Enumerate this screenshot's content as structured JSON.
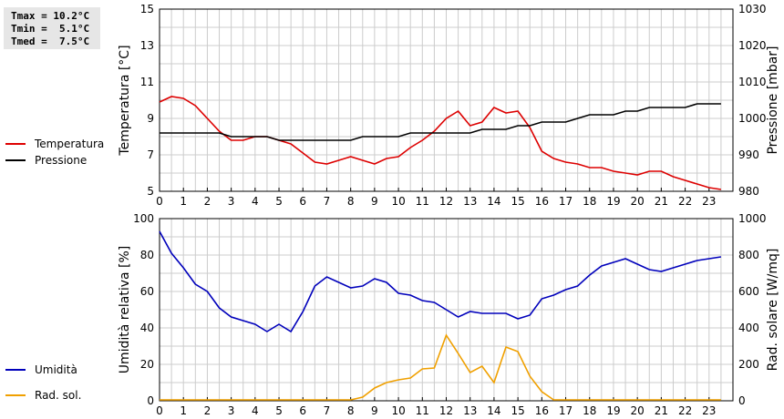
{
  "stats": {
    "tmax": "Tmax = 10.2°C",
    "tmin": "Tmin =  5.1°C",
    "tmed": "Tmed =  7.5°C"
  },
  "colors": {
    "temperature": "#dd0000",
    "pressure": "#000000",
    "humidity": "#0000bb",
    "solar": "#f0a000",
    "grid": "#cccccc"
  },
  "chart_data": [
    {
      "type": "line",
      "xlim": [
        0,
        24
      ],
      "x_ticks": [
        "0",
        "1",
        "2",
        "3",
        "4",
        "5",
        "6",
        "7",
        "8",
        "9",
        "10",
        "11",
        "12",
        "13",
        "14",
        "15",
        "16",
        "17",
        "18",
        "19",
        "20",
        "21",
        "22",
        "23"
      ],
      "y_left": {
        "label": "Temperatura [°C]",
        "lim": [
          5,
          15
        ],
        "ticks": [
          "5",
          "7",
          "9",
          "11",
          "13",
          "15"
        ]
      },
      "y_right": {
        "label": "Pressione [mbar]",
        "lim": [
          980,
          1030
        ],
        "ticks": [
          "980",
          "990",
          "1000",
          "1010",
          "1020",
          "1030"
        ]
      },
      "grid": true,
      "legend_position": "left",
      "series": [
        {
          "name": "Temperatura",
          "axis": "left",
          "color": "#dd0000",
          "x": [
            0,
            0.5,
            1,
            1.5,
            2,
            2.5,
            3,
            3.5,
            4,
            4.5,
            5,
            5.5,
            6,
            6.5,
            7,
            7.5,
            8,
            8.5,
            9,
            9.5,
            10,
            10.5,
            11,
            11.5,
            12,
            12.5,
            13,
            13.5,
            14,
            14.5,
            15,
            15.5,
            16,
            16.5,
            17,
            17.5,
            18,
            18.5,
            19,
            19.5,
            20,
            20.5,
            21,
            21.5,
            22,
            22.5,
            23,
            23.5
          ],
          "y": [
            9.9,
            10.2,
            10.1,
            9.7,
            9.0,
            8.3,
            7.8,
            7.8,
            8.0,
            8.0,
            7.8,
            7.6,
            7.1,
            6.6,
            6.5,
            6.7,
            6.9,
            6.7,
            6.5,
            6.8,
            6.9,
            7.4,
            7.8,
            8.3,
            9.0,
            9.4,
            8.6,
            8.8,
            9.6,
            9.3,
            9.4,
            8.5,
            7.2,
            6.8,
            6.6,
            6.5,
            6.3,
            6.3,
            6.1,
            6.0,
            5.9,
            6.1,
            6.1,
            5.8,
            5.6,
            5.4,
            5.2,
            5.1
          ]
        },
        {
          "name": "Pressione",
          "axis": "right",
          "color": "#000000",
          "x": [
            0,
            0.5,
            1,
            1.5,
            2,
            2.5,
            3,
            3.5,
            4,
            4.5,
            5,
            5.5,
            6,
            6.5,
            7,
            7.5,
            8,
            8.5,
            9,
            9.5,
            10,
            10.5,
            11,
            11.5,
            12,
            12.5,
            13,
            13.5,
            14,
            14.5,
            15,
            15.5,
            16,
            16.5,
            17,
            17.5,
            18,
            18.5,
            19,
            19.5,
            20,
            20.5,
            21,
            21.5,
            22,
            22.5,
            23,
            23.5
          ],
          "y": [
            996,
            996,
            996,
            996,
            996,
            996,
            995,
            995,
            995,
            995,
            994,
            994,
            994,
            994,
            994,
            994,
            994,
            995,
            995,
            995,
            995,
            996,
            996,
            996,
            996,
            996,
            996,
            997,
            997,
            997,
            998,
            998,
            999,
            999,
            999,
            1000,
            1001,
            1001,
            1001,
            1002,
            1002,
            1003,
            1003,
            1003,
            1003,
            1004,
            1004,
            1004
          ]
        }
      ]
    },
    {
      "type": "line",
      "xlim": [
        0,
        24
      ],
      "x_ticks": [
        "0",
        "1",
        "2",
        "3",
        "4",
        "5",
        "6",
        "7",
        "8",
        "9",
        "10",
        "11",
        "12",
        "13",
        "14",
        "15",
        "16",
        "17",
        "18",
        "19",
        "20",
        "21",
        "22",
        "23"
      ],
      "y_left": {
        "label": "Umidità relativa [%]",
        "lim": [
          0,
          100
        ],
        "ticks": [
          "0",
          "20",
          "40",
          "60",
          "80",
          "100"
        ]
      },
      "y_right": {
        "label": "Rad. solare [W/mq]",
        "lim": [
          0,
          1000
        ],
        "ticks": [
          "0",
          "200",
          "400",
          "600",
          "800",
          "1000"
        ]
      },
      "grid": true,
      "legend_position": "left",
      "series": [
        {
          "name": "Umidità",
          "axis": "left",
          "color": "#0000bb",
          "x": [
            0,
            0.5,
            1,
            1.5,
            2,
            2.5,
            3,
            3.5,
            4,
            4.5,
            5,
            5.5,
            6,
            6.5,
            7,
            7.5,
            8,
            8.5,
            9,
            9.5,
            10,
            10.5,
            11,
            11.5,
            12,
            12.5,
            13,
            13.5,
            14,
            14.5,
            15,
            15.5,
            16,
            16.5,
            17,
            17.5,
            18,
            18.5,
            19,
            19.5,
            20,
            20.5,
            21,
            21.5,
            22,
            22.5,
            23,
            23.5
          ],
          "y": [
            93,
            81,
            73,
            64,
            60,
            51,
            46,
            44,
            42,
            38,
            42,
            38,
            49,
            63,
            68,
            65,
            62,
            63,
            67,
            65,
            59,
            58,
            55,
            54,
            50,
            46,
            49,
            48,
            48,
            48,
            45,
            47,
            56,
            58,
            61,
            63,
            69,
            74,
            76,
            78,
            75,
            72,
            71,
            73,
            75,
            77,
            78,
            79
          ]
        },
        {
          "name": "Rad. sol.",
          "axis": "right",
          "color": "#f0a000",
          "x": [
            0,
            0.5,
            1,
            1.5,
            2,
            2.5,
            3,
            3.5,
            4,
            4.5,
            5,
            5.5,
            6,
            6.5,
            7,
            7.5,
            8,
            8.5,
            9,
            9.5,
            10,
            10.5,
            11,
            11.5,
            12,
            12.5,
            13,
            13.5,
            14,
            14.5,
            15,
            15.5,
            16,
            16.5,
            17,
            17.5,
            18,
            18.5,
            19,
            19.5,
            20,
            20.5,
            21,
            21.5,
            22,
            22.5,
            23,
            23.5
          ],
          "y": [
            5,
            5,
            5,
            5,
            5,
            5,
            5,
            5,
            5,
            5,
            5,
            5,
            5,
            5,
            5,
            5,
            5,
            20,
            70,
            100,
            115,
            125,
            175,
            180,
            360,
            260,
            155,
            190,
            100,
            295,
            270,
            135,
            50,
            5,
            5,
            5,
            5,
            5,
            5,
            5,
            5,
            5,
            5,
            5,
            5,
            5,
            5,
            5
          ]
        }
      ]
    }
  ]
}
